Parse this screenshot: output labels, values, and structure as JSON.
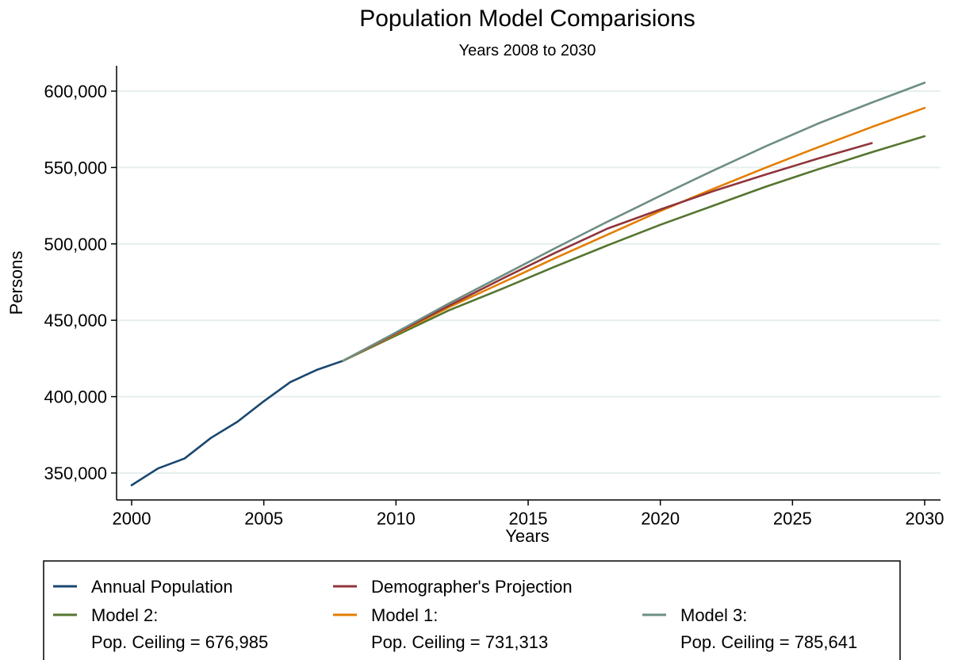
{
  "chart_data": {
    "type": "line",
    "title": "Population Model Comparisions",
    "subtitle": "Years 2008 to 2030",
    "xlabel": "Years",
    "ylabel": "Persons",
    "xlim": [
      2000,
      2030
    ],
    "ylim": [
      340000,
      615000
    ],
    "xticks": [
      2000,
      2005,
      2010,
      2015,
      2020,
      2025,
      2030
    ],
    "yticks": [
      350000,
      400000,
      450000,
      500000,
      550000,
      600000
    ],
    "xtick_labels": [
      "2000",
      "2005",
      "2010",
      "2015",
      "2020",
      "2025",
      "2030"
    ],
    "ytick_labels": [
      "350,000",
      "400,000",
      "450,000",
      "500,000",
      "550,000",
      "600,000"
    ],
    "grid": "horizontal",
    "legend_position": "bottom",
    "series": [
      {
        "name": "Annual Population",
        "color": "#1a476f",
        "x": [
          2000,
          2001,
          2002,
          2003,
          2004,
          2005,
          2006,
          2007,
          2008
        ],
        "y": [
          342000,
          353000,
          359500,
          373000,
          383500,
          397000,
          409500,
          417500,
          423500
        ]
      },
      {
        "name": "Demographer's Projection",
        "color": "#90353b",
        "x": [
          2008,
          2010,
          2012,
          2014,
          2016,
          2018,
          2020,
          2022,
          2024,
          2026,
          2028
        ],
        "y": [
          423500,
          441500,
          459500,
          477000,
          494000,
          510000,
          522500,
          534500,
          545500,
          556000,
          566000
        ]
      },
      {
        "name": "Model 2:",
        "label_line2": "Pop. Ceiling = 676,985",
        "color": "#55752f",
        "x": [
          2008,
          2010,
          2012,
          2014,
          2016,
          2018,
          2020,
          2022,
          2024,
          2026,
          2028,
          2030
        ],
        "y": [
          423500,
          440000,
          456500,
          470500,
          485000,
          499000,
          512500,
          525000,
          537500,
          549000,
          560000,
          570500
        ]
      },
      {
        "name": "Model 1:",
        "label_line2": "Pop. Ceiling = 731,313",
        "color": "#e37e00",
        "x": [
          2008,
          2010,
          2012,
          2014,
          2016,
          2018,
          2020,
          2022,
          2024,
          2026,
          2028,
          2030
        ],
        "y": [
          423500,
          441000,
          458500,
          474500,
          490500,
          506000,
          521500,
          536000,
          550000,
          563500,
          576500,
          589000
        ]
      },
      {
        "name": "Model 3:",
        "label_line2": "Pop. Ceiling = 785,641",
        "color": "#6e8e84",
        "x": [
          2008,
          2010,
          2012,
          2014,
          2016,
          2018,
          2020,
          2022,
          2024,
          2026,
          2028,
          2030
        ],
        "y": [
          423500,
          442000,
          461000,
          479000,
          497000,
          514500,
          531500,
          548000,
          564000,
          579000,
          592500,
          605500
        ]
      }
    ]
  }
}
